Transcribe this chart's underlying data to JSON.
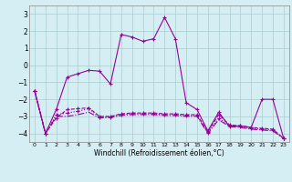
{
  "xlabel": "Windchill (Refroidissement éolien,°C)",
  "background_color": "#d4eef4",
  "grid_color": "#aacccc",
  "line_color": "#990099",
  "xlim": [
    -0.5,
    23.5
  ],
  "ylim": [
    -4.5,
    3.5
  ],
  "yticks": [
    -4,
    -3,
    -2,
    -1,
    0,
    1,
    2,
    3
  ],
  "xticks": [
    0,
    1,
    2,
    3,
    4,
    5,
    6,
    7,
    8,
    9,
    10,
    11,
    12,
    13,
    14,
    15,
    16,
    17,
    18,
    19,
    20,
    21,
    22,
    23
  ],
  "series": [
    {
      "x": [
        0,
        1,
        2,
        3,
        4,
        5,
        6,
        7,
        8,
        9,
        10,
        11,
        12,
        13,
        14,
        15,
        16,
        17,
        18,
        19,
        20,
        21,
        22,
        23
      ],
      "y": [
        -1.5,
        -4.0,
        -2.6,
        -0.7,
        -0.5,
        -0.3,
        -0.35,
        -1.1,
        1.8,
        1.65,
        1.4,
        1.55,
        2.8,
        1.55,
        -2.2,
        -2.6,
        -3.85,
        -2.75,
        -3.6,
        -3.55,
        -3.65,
        -2.0,
        -2.0,
        -4.3
      ],
      "style": "-",
      "marker": "+"
    },
    {
      "x": [
        0,
        1,
        2,
        3,
        4,
        5,
        6,
        7,
        8,
        9,
        10,
        11,
        12,
        13,
        14,
        15,
        16,
        17,
        18,
        19,
        20,
        21,
        22,
        23
      ],
      "y": [
        -1.5,
        -4.0,
        -3.1,
        -2.6,
        -2.55,
        -2.5,
        -3.0,
        -3.0,
        -2.85,
        -2.8,
        -2.8,
        -2.8,
        -2.85,
        -2.85,
        -2.9,
        -2.9,
        -3.9,
        -2.9,
        -3.5,
        -3.55,
        -3.65,
        -3.7,
        -3.75,
        -4.3
      ],
      "style": "--",
      "marker": "+"
    },
    {
      "x": [
        0,
        1,
        2,
        3,
        4,
        5,
        6,
        7,
        8,
        9,
        10,
        11,
        12,
        13,
        14,
        15,
        16,
        17,
        18,
        19,
        20,
        21,
        22,
        23
      ],
      "y": [
        -1.5,
        -4.0,
        -2.9,
        -2.8,
        -2.7,
        -2.55,
        -3.05,
        -3.05,
        -2.9,
        -2.85,
        -2.85,
        -2.85,
        -2.9,
        -2.9,
        -2.95,
        -2.95,
        -3.95,
        -3.1,
        -3.55,
        -3.6,
        -3.7,
        -3.75,
        -3.8,
        -4.3
      ],
      "style": ":",
      "marker": "+"
    },
    {
      "x": [
        0,
        1,
        2,
        3,
        4,
        5,
        6,
        7,
        8,
        9,
        10,
        11,
        12,
        13,
        14,
        15,
        16,
        17,
        18,
        19,
        20,
        21,
        22,
        23
      ],
      "y": [
        -1.5,
        -4.0,
        -3.0,
        -3.0,
        -2.9,
        -2.75,
        -3.1,
        -3.05,
        -2.95,
        -2.9,
        -2.9,
        -2.9,
        -2.95,
        -2.95,
        -3.0,
        -3.0,
        -4.0,
        -3.2,
        -3.6,
        -3.65,
        -3.75,
        -3.8,
        -3.85,
        -4.3
      ],
      "style": "-.",
      "marker": null
    }
  ]
}
